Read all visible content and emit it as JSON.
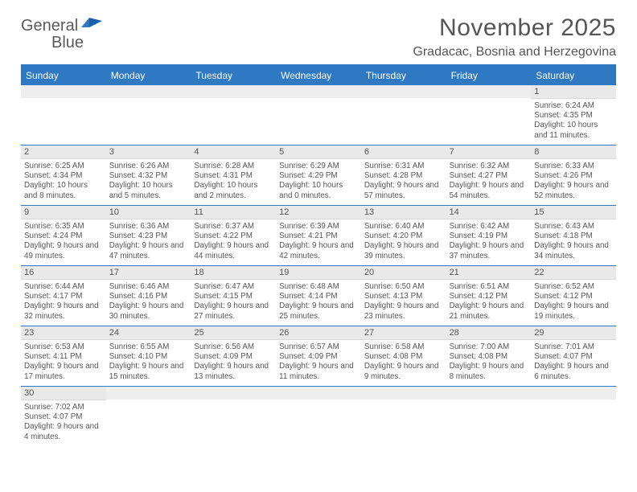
{
  "brand": {
    "part1": "General",
    "part2": "Blue"
  },
  "title": "November 2025",
  "location": "Gradacac, Bosnia and Herzegovina",
  "colors": {
    "accent": "#2f78c2",
    "header_text": "#ffffff",
    "body_text": "#555555",
    "daynum_bg": "#e9e9e9",
    "background": "#ffffff"
  },
  "weekdays": [
    "Sunday",
    "Monday",
    "Tuesday",
    "Wednesday",
    "Thursday",
    "Friday",
    "Saturday"
  ],
  "weeks": [
    [
      {
        "n": "",
        "sunrise": "",
        "sunset": "",
        "daylight": ""
      },
      {
        "n": "",
        "sunrise": "",
        "sunset": "",
        "daylight": ""
      },
      {
        "n": "",
        "sunrise": "",
        "sunset": "",
        "daylight": ""
      },
      {
        "n": "",
        "sunrise": "",
        "sunset": "",
        "daylight": ""
      },
      {
        "n": "",
        "sunrise": "",
        "sunset": "",
        "daylight": ""
      },
      {
        "n": "",
        "sunrise": "",
        "sunset": "",
        "daylight": ""
      },
      {
        "n": "1",
        "sunrise": "Sunrise: 6:24 AM",
        "sunset": "Sunset: 4:35 PM",
        "daylight": "Daylight: 10 hours and 11 minutes."
      }
    ],
    [
      {
        "n": "2",
        "sunrise": "Sunrise: 6:25 AM",
        "sunset": "Sunset: 4:34 PM",
        "daylight": "Daylight: 10 hours and 8 minutes."
      },
      {
        "n": "3",
        "sunrise": "Sunrise: 6:26 AM",
        "sunset": "Sunset: 4:32 PM",
        "daylight": "Daylight: 10 hours and 5 minutes."
      },
      {
        "n": "4",
        "sunrise": "Sunrise: 6:28 AM",
        "sunset": "Sunset: 4:31 PM",
        "daylight": "Daylight: 10 hours and 2 minutes."
      },
      {
        "n": "5",
        "sunrise": "Sunrise: 6:29 AM",
        "sunset": "Sunset: 4:29 PM",
        "daylight": "Daylight: 10 hours and 0 minutes."
      },
      {
        "n": "6",
        "sunrise": "Sunrise: 6:31 AM",
        "sunset": "Sunset: 4:28 PM",
        "daylight": "Daylight: 9 hours and 57 minutes."
      },
      {
        "n": "7",
        "sunrise": "Sunrise: 6:32 AM",
        "sunset": "Sunset: 4:27 PM",
        "daylight": "Daylight: 9 hours and 54 minutes."
      },
      {
        "n": "8",
        "sunrise": "Sunrise: 6:33 AM",
        "sunset": "Sunset: 4:26 PM",
        "daylight": "Daylight: 9 hours and 52 minutes."
      }
    ],
    [
      {
        "n": "9",
        "sunrise": "Sunrise: 6:35 AM",
        "sunset": "Sunset: 4:24 PM",
        "daylight": "Daylight: 9 hours and 49 minutes."
      },
      {
        "n": "10",
        "sunrise": "Sunrise: 6:36 AM",
        "sunset": "Sunset: 4:23 PM",
        "daylight": "Daylight: 9 hours and 47 minutes."
      },
      {
        "n": "11",
        "sunrise": "Sunrise: 6:37 AM",
        "sunset": "Sunset: 4:22 PM",
        "daylight": "Daylight: 9 hours and 44 minutes."
      },
      {
        "n": "12",
        "sunrise": "Sunrise: 6:39 AM",
        "sunset": "Sunset: 4:21 PM",
        "daylight": "Daylight: 9 hours and 42 minutes."
      },
      {
        "n": "13",
        "sunrise": "Sunrise: 6:40 AM",
        "sunset": "Sunset: 4:20 PM",
        "daylight": "Daylight: 9 hours and 39 minutes."
      },
      {
        "n": "14",
        "sunrise": "Sunrise: 6:42 AM",
        "sunset": "Sunset: 4:19 PM",
        "daylight": "Daylight: 9 hours and 37 minutes."
      },
      {
        "n": "15",
        "sunrise": "Sunrise: 6:43 AM",
        "sunset": "Sunset: 4:18 PM",
        "daylight": "Daylight: 9 hours and 34 minutes."
      }
    ],
    [
      {
        "n": "16",
        "sunrise": "Sunrise: 6:44 AM",
        "sunset": "Sunset: 4:17 PM",
        "daylight": "Daylight: 9 hours and 32 minutes."
      },
      {
        "n": "17",
        "sunrise": "Sunrise: 6:46 AM",
        "sunset": "Sunset: 4:16 PM",
        "daylight": "Daylight: 9 hours and 30 minutes."
      },
      {
        "n": "18",
        "sunrise": "Sunrise: 6:47 AM",
        "sunset": "Sunset: 4:15 PM",
        "daylight": "Daylight: 9 hours and 27 minutes."
      },
      {
        "n": "19",
        "sunrise": "Sunrise: 6:48 AM",
        "sunset": "Sunset: 4:14 PM",
        "daylight": "Daylight: 9 hours and 25 minutes."
      },
      {
        "n": "20",
        "sunrise": "Sunrise: 6:50 AM",
        "sunset": "Sunset: 4:13 PM",
        "daylight": "Daylight: 9 hours and 23 minutes."
      },
      {
        "n": "21",
        "sunrise": "Sunrise: 6:51 AM",
        "sunset": "Sunset: 4:12 PM",
        "daylight": "Daylight: 9 hours and 21 minutes."
      },
      {
        "n": "22",
        "sunrise": "Sunrise: 6:52 AM",
        "sunset": "Sunset: 4:12 PM",
        "daylight": "Daylight: 9 hours and 19 minutes."
      }
    ],
    [
      {
        "n": "23",
        "sunrise": "Sunrise: 6:53 AM",
        "sunset": "Sunset: 4:11 PM",
        "daylight": "Daylight: 9 hours and 17 minutes."
      },
      {
        "n": "24",
        "sunrise": "Sunrise: 6:55 AM",
        "sunset": "Sunset: 4:10 PM",
        "daylight": "Daylight: 9 hours and 15 minutes."
      },
      {
        "n": "25",
        "sunrise": "Sunrise: 6:56 AM",
        "sunset": "Sunset: 4:09 PM",
        "daylight": "Daylight: 9 hours and 13 minutes."
      },
      {
        "n": "26",
        "sunrise": "Sunrise: 6:57 AM",
        "sunset": "Sunset: 4:09 PM",
        "daylight": "Daylight: 9 hours and 11 minutes."
      },
      {
        "n": "27",
        "sunrise": "Sunrise: 6:58 AM",
        "sunset": "Sunset: 4:08 PM",
        "daylight": "Daylight: 9 hours and 9 minutes."
      },
      {
        "n": "28",
        "sunrise": "Sunrise: 7:00 AM",
        "sunset": "Sunset: 4:08 PM",
        "daylight": "Daylight: 9 hours and 8 minutes."
      },
      {
        "n": "29",
        "sunrise": "Sunrise: 7:01 AM",
        "sunset": "Sunset: 4:07 PM",
        "daylight": "Daylight: 9 hours and 6 minutes."
      }
    ],
    [
      {
        "n": "30",
        "sunrise": "Sunrise: 7:02 AM",
        "sunset": "Sunset: 4:07 PM",
        "daylight": "Daylight: 9 hours and 4 minutes."
      },
      {
        "n": "",
        "sunrise": "",
        "sunset": "",
        "daylight": ""
      },
      {
        "n": "",
        "sunrise": "",
        "sunset": "",
        "daylight": ""
      },
      {
        "n": "",
        "sunrise": "",
        "sunset": "",
        "daylight": ""
      },
      {
        "n": "",
        "sunrise": "",
        "sunset": "",
        "daylight": ""
      },
      {
        "n": "",
        "sunrise": "",
        "sunset": "",
        "daylight": ""
      },
      {
        "n": "",
        "sunrise": "",
        "sunset": "",
        "daylight": ""
      }
    ]
  ]
}
